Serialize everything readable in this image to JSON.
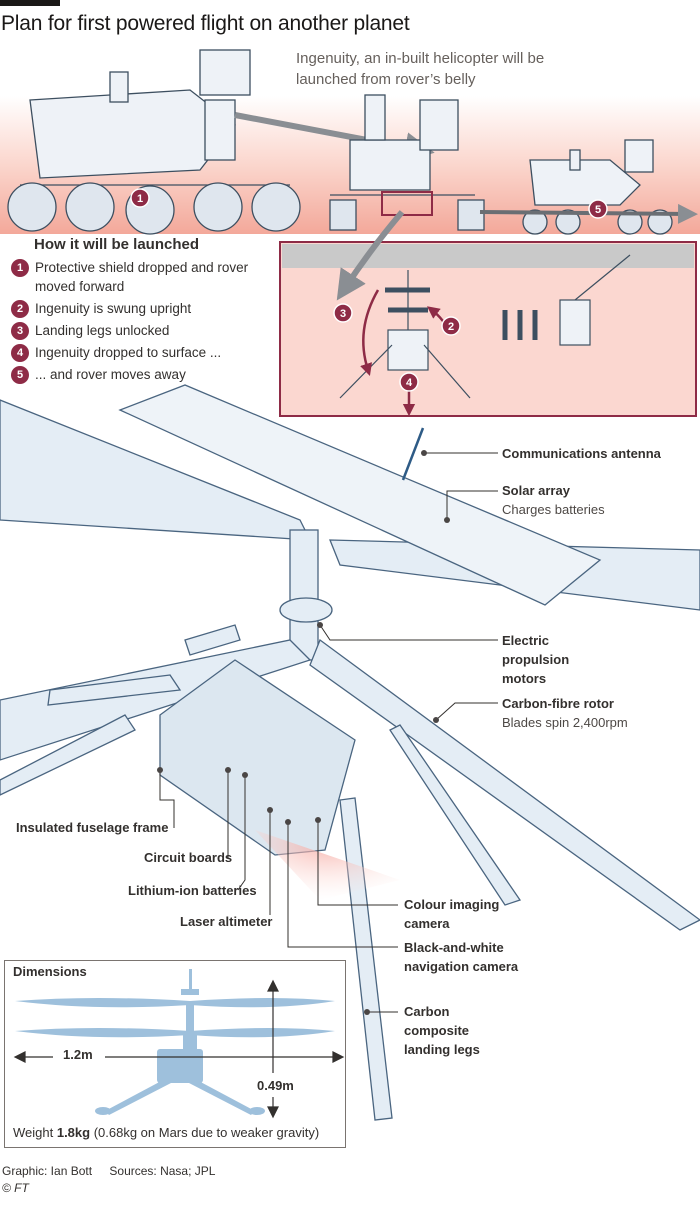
{
  "title": "Plan for first powered flight on another planet",
  "intro": "Ingenuity, an in-built helicopter will be launched from rover’s belly",
  "launch": {
    "heading": "How it will be launched",
    "steps": [
      {
        "num": "1",
        "text": "Protective shield dropped and rover moved forward"
      },
      {
        "num": "2",
        "text": "Ingenuity is swung upright"
      },
      {
        "num": "3",
        "text": "Landing legs unlocked"
      },
      {
        "num": "4",
        "text": "Ingenuity dropped to surface ..."
      },
      {
        "num": "5",
        "text": "... and rover moves away"
      }
    ]
  },
  "labels": {
    "antenna": "Communications antenna",
    "solar_title": "Solar array",
    "solar_sub": "Charges batteries",
    "motors_1": "Electric",
    "motors_2": "propulsion",
    "motors_3": "motors",
    "rotor_title": "Carbon-fibre rotor",
    "rotor_sub": "Blades spin 2,400rpm",
    "fuselage": "Insulated fuselage frame",
    "circuit": "Circuit boards",
    "batteries": "Lithium-ion batteries",
    "laser": "Laser altimeter",
    "colour_1": "Colour imaging",
    "colour_2": "camera",
    "bw_1": "Black-and-white",
    "bw_2": "navigation camera",
    "legs_1": "Carbon",
    "legs_2": "composite",
    "legs_3": "landing legs"
  },
  "dimensions": {
    "heading": "Dimensions",
    "width": "1.2m",
    "height": "0.49m",
    "weight_prefix": "Weight ",
    "weight_value": "1.8kg",
    "weight_suffix": " (0.68kg on Mars due to weaker gravity)"
  },
  "credits": {
    "graphic": "Graphic: Ian Bott",
    "sources": "Sources: Nasa; JPL",
    "copyright": "© FT"
  },
  "colors": {
    "accent": "#8e2b46",
    "pink": "#f6c4bb",
    "blue_fill": "#e4edf5",
    "blue_stroke": "#4a6580",
    "dim_blue": "#9ec0dc"
  }
}
